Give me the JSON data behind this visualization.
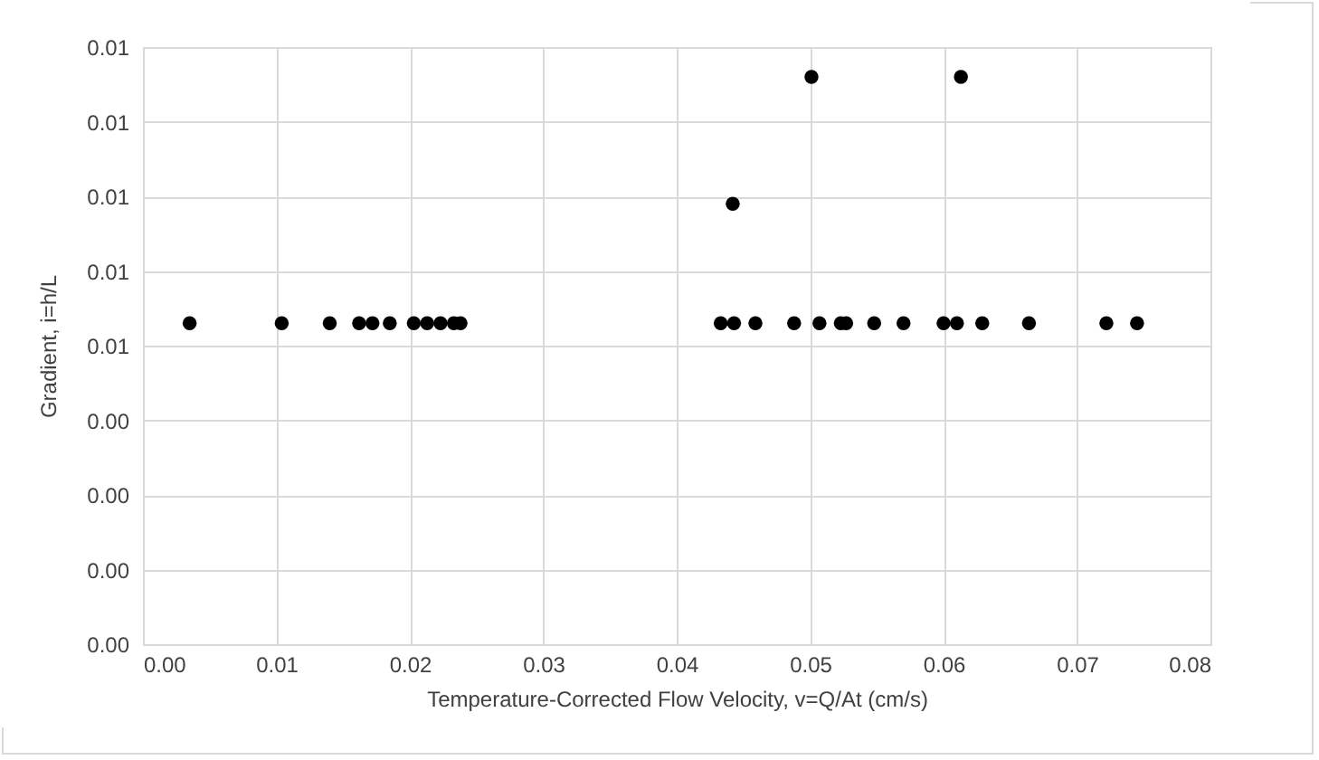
{
  "chart_data": {
    "type": "scatter",
    "xlabel": "Temperature-Corrected Flow Velocity, v=Q/At (cm/s)",
    "ylabel": "Gradient, i=h/L",
    "x": [
      0.0035,
      0.0104,
      0.014,
      0.0162,
      0.0172,
      0.0185,
      0.0203,
      0.0213,
      0.0223,
      0.0233,
      0.0238,
      0.0433,
      0.0443,
      0.0459,
      0.0488,
      0.0507,
      0.0523,
      0.0527,
      0.0548,
      0.057,
      0.06,
      0.061,
      0.0629,
      0.0664,
      0.0722,
      0.0745,
      0.0442,
      0.0501,
      0.0613
    ],
    "series": [
      {
        "color": "#000000",
        "values": [
          0.0053,
          0.0053,
          0.0053,
          0.0053,
          0.0053,
          0.0053,
          0.0053,
          0.0053,
          0.0053,
          0.0053,
          0.0053,
          0.0053,
          0.0053,
          0.0053,
          0.0053,
          0.0053,
          0.0053,
          0.0053,
          0.0053,
          0.0053,
          0.0053,
          0.0053,
          0.0053,
          0.0053,
          0.0053,
          0.0053,
          0.0069,
          0.0086,
          0.0086
        ]
      }
    ],
    "xlim": [
      0,
      0.08
    ],
    "xticks": [
      {
        "value": 0,
        "label": "0.00"
      },
      {
        "value": 0.01,
        "label": "0.01"
      },
      {
        "value": 0.02,
        "label": "0.02"
      },
      {
        "value": 0.03,
        "label": "0.03"
      },
      {
        "value": 0.04,
        "label": "0.04"
      },
      {
        "value": 0.05,
        "label": "0.05"
      },
      {
        "value": 0.06,
        "label": "0.06"
      },
      {
        "value": 0.07,
        "label": "0.07"
      },
      {
        "value": 0.08,
        "label": "0.08"
      }
    ],
    "ylim": [
      0.001,
      0.009
    ],
    "yticks": [
      {
        "value": 0.001,
        "label": "0.00"
      },
      {
        "value": 0.002,
        "label": "0.00"
      },
      {
        "value": 0.003,
        "label": "0.00"
      },
      {
        "value": 0.004,
        "label": "0.00"
      },
      {
        "value": 0.005,
        "label": "0.01"
      },
      {
        "value": 0.006,
        "label": "0.01"
      },
      {
        "value": 0.007,
        "label": "0.01"
      },
      {
        "value": 0.008,
        "label": "0.01"
      },
      {
        "value": 0.009,
        "label": "0.01"
      }
    ],
    "grid": true,
    "marker": "circle"
  }
}
